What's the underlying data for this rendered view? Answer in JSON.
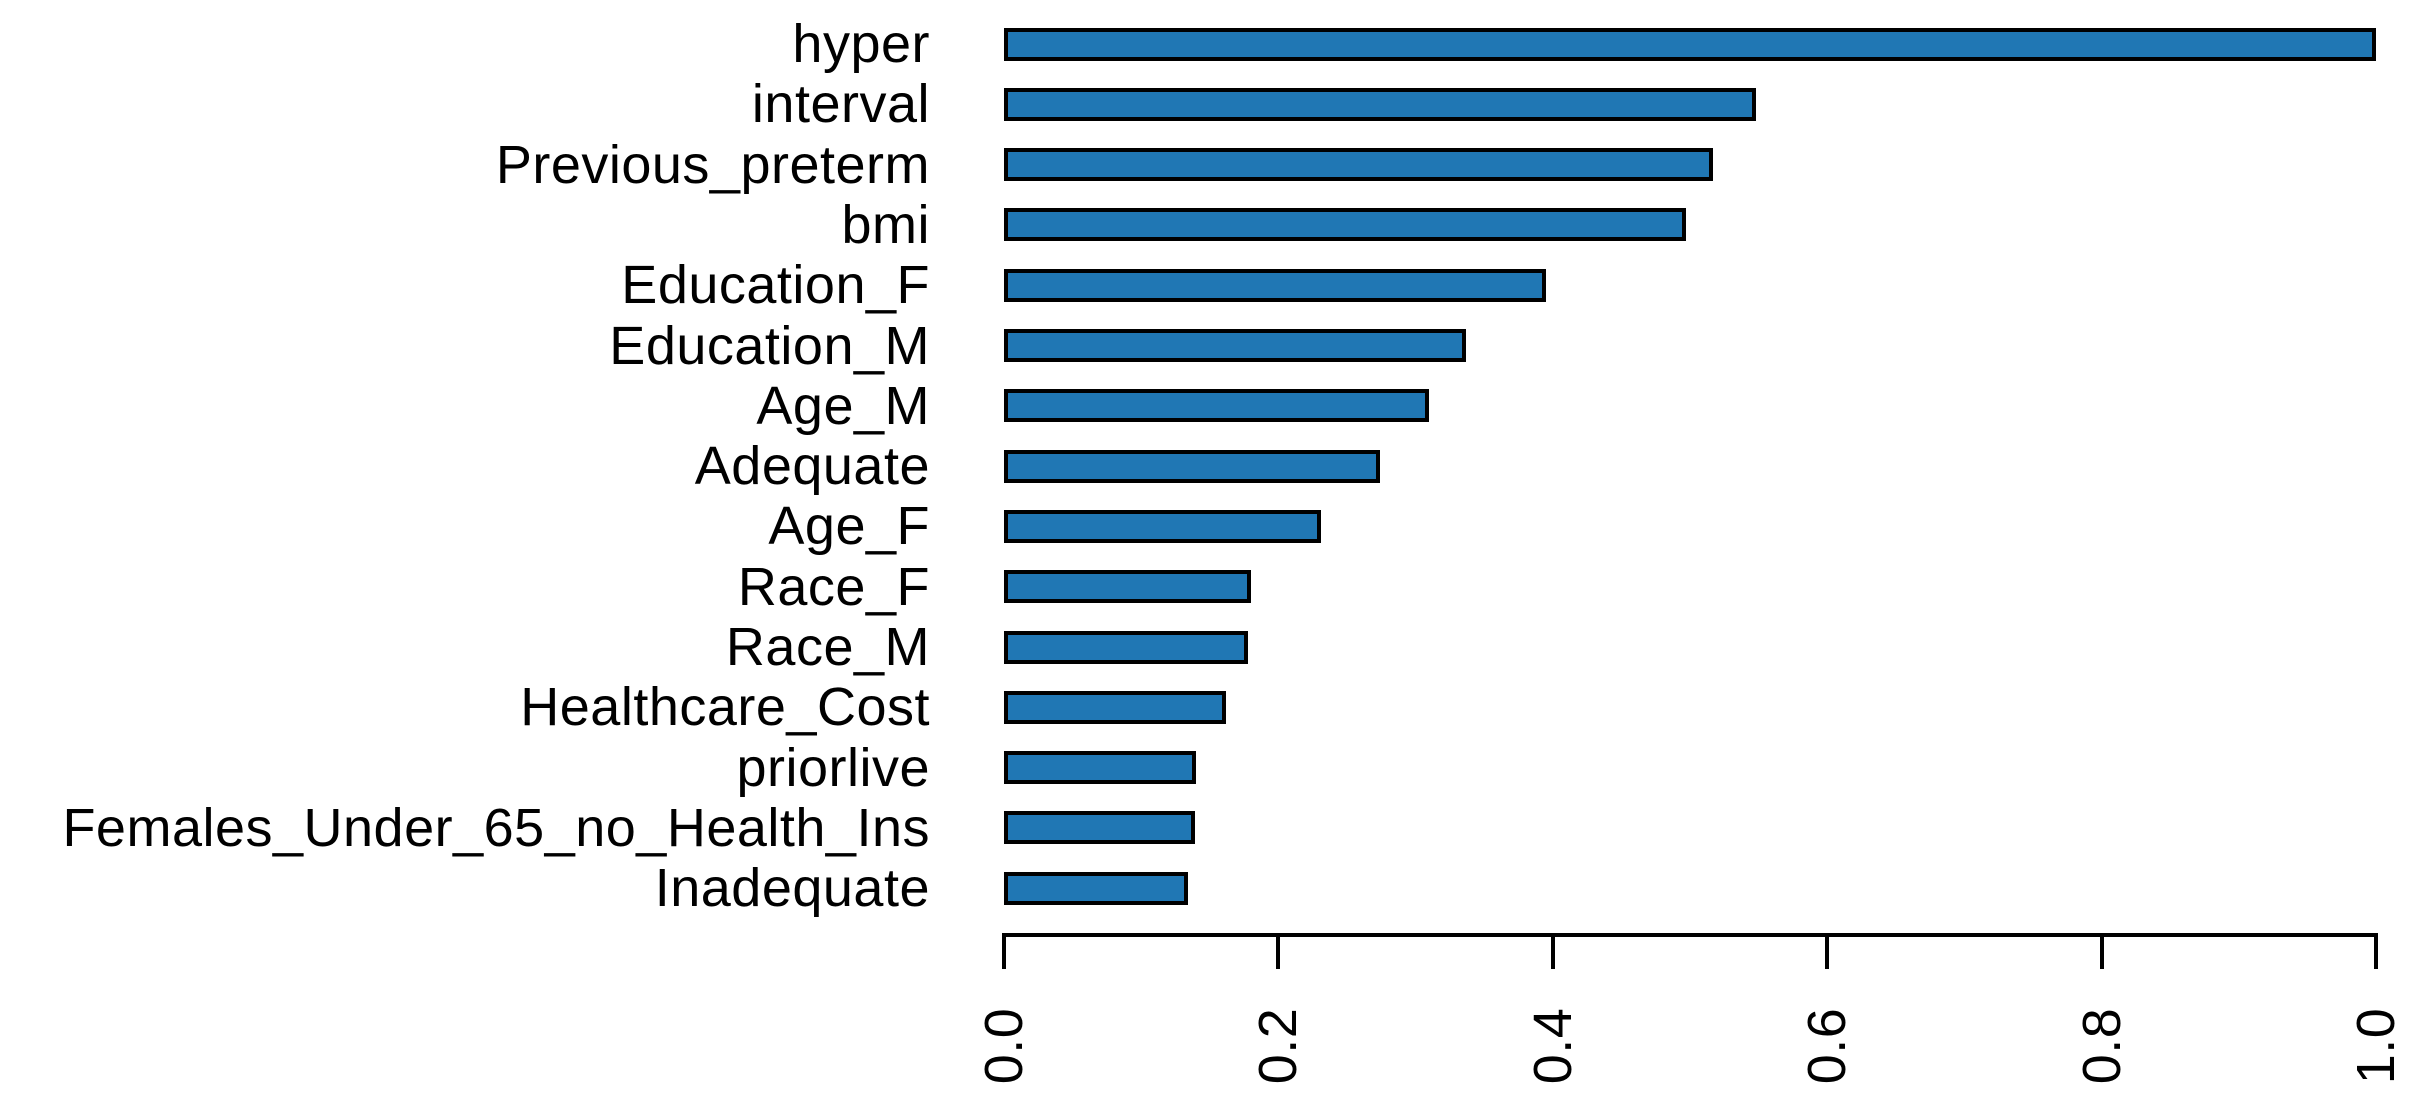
{
  "chart_data": {
    "type": "bar",
    "orientation": "horizontal",
    "title": "",
    "xlabel": "",
    "ylabel": "",
    "categories": [
      "hyper",
      "interval",
      "Previous_preterm",
      "bmi",
      "Education_F",
      "Education_M",
      "Age_M",
      "Adequate",
      "Age_F",
      "Race_F",
      "Race_M",
      "Healthcare_Cost",
      "priorlive",
      "Females_Under_65_no_Health_Ins",
      "Inadequate"
    ],
    "values": [
      1.0,
      0.548,
      0.517,
      0.497,
      0.395,
      0.337,
      0.31,
      0.274,
      0.231,
      0.18,
      0.178,
      0.162,
      0.14,
      0.139,
      0.134
    ],
    "xlim": [
      0.0,
      1.0
    ],
    "x_ticks": [
      "0.0",
      "0.2",
      "0.4",
      "0.6",
      "0.8",
      "1.0"
    ],
    "x_tick_values": [
      0.0,
      0.2,
      0.4,
      0.6,
      0.8,
      1.0
    ],
    "x_tick_label_rotation_deg": -90,
    "grid": false,
    "legend": "none",
    "bar_color": "#2077B4",
    "bar_border_color": "#000000",
    "axis_color": "#000000",
    "text_color": "#000000",
    "background_color": "#FFFFFF"
  }
}
